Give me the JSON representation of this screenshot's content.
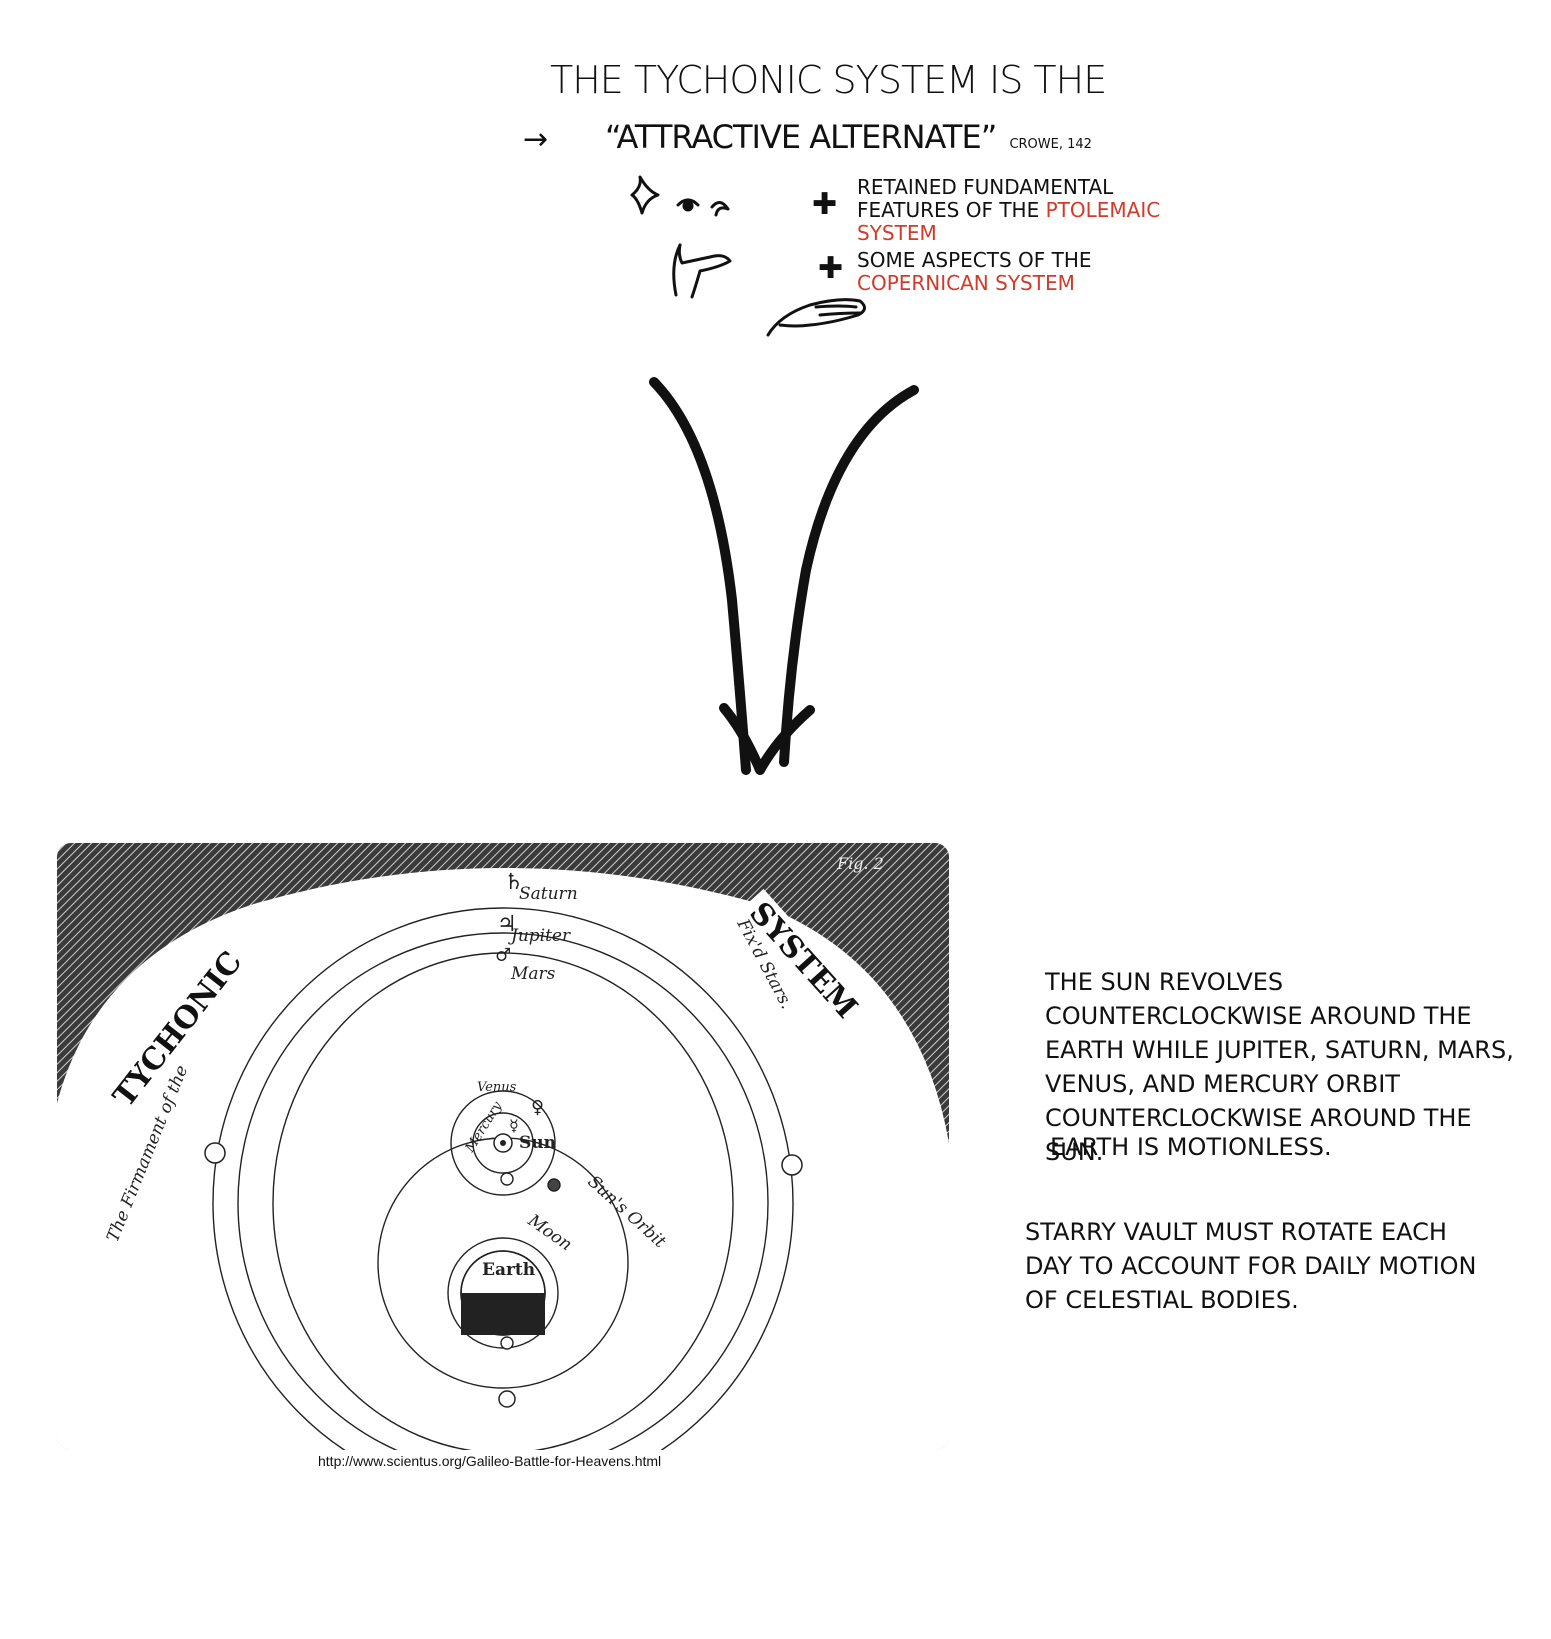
{
  "heading": {
    "line1": "The Tychonic system is the",
    "line2": "“Attractive Alternate”",
    "citation": "Crowe, 142"
  },
  "features": [
    {
      "prefix": "Retained fundamental features of the",
      "highlight": "Ptolemaic system"
    },
    {
      "prefix": "Some aspects of the",
      "highlight": "Copernican system"
    }
  ],
  "figure": {
    "title_left": "TYCHONIC",
    "title_right": "SYSTEM",
    "arc_left": "The Firmament of the",
    "arc_right": "Fix'd Stars.",
    "fig_label": "Fig. 2",
    "labels": {
      "saturn": "Saturn",
      "jupiter": "Jupiter",
      "mars": "Mars",
      "venus": "Venus",
      "mercury": "Mercury",
      "sun": "Sun",
      "suns_orbit": "Sun's Orbit",
      "moon": "Moon",
      "earth": "Earth"
    },
    "symbols": {
      "saturn": "♄",
      "jupiter": "♃",
      "mars": "♂",
      "venus": "♀",
      "mercury": "☿"
    }
  },
  "source_url": "http://www.scientus.org/Galileo-Battle-for-Heavens.html",
  "notes": {
    "p1": "The sun revolves counterclockwise around the earth while Jupiter, Saturn, Mars, Venus, and Mercury orbit counterclockwise around the sun.",
    "p2": "Earth is motionless.",
    "p3": "Starry vault must rotate each day to account for daily motion of celestial bodies."
  },
  "colors": {
    "accent": "#d23a2a",
    "ink": "#111111"
  }
}
